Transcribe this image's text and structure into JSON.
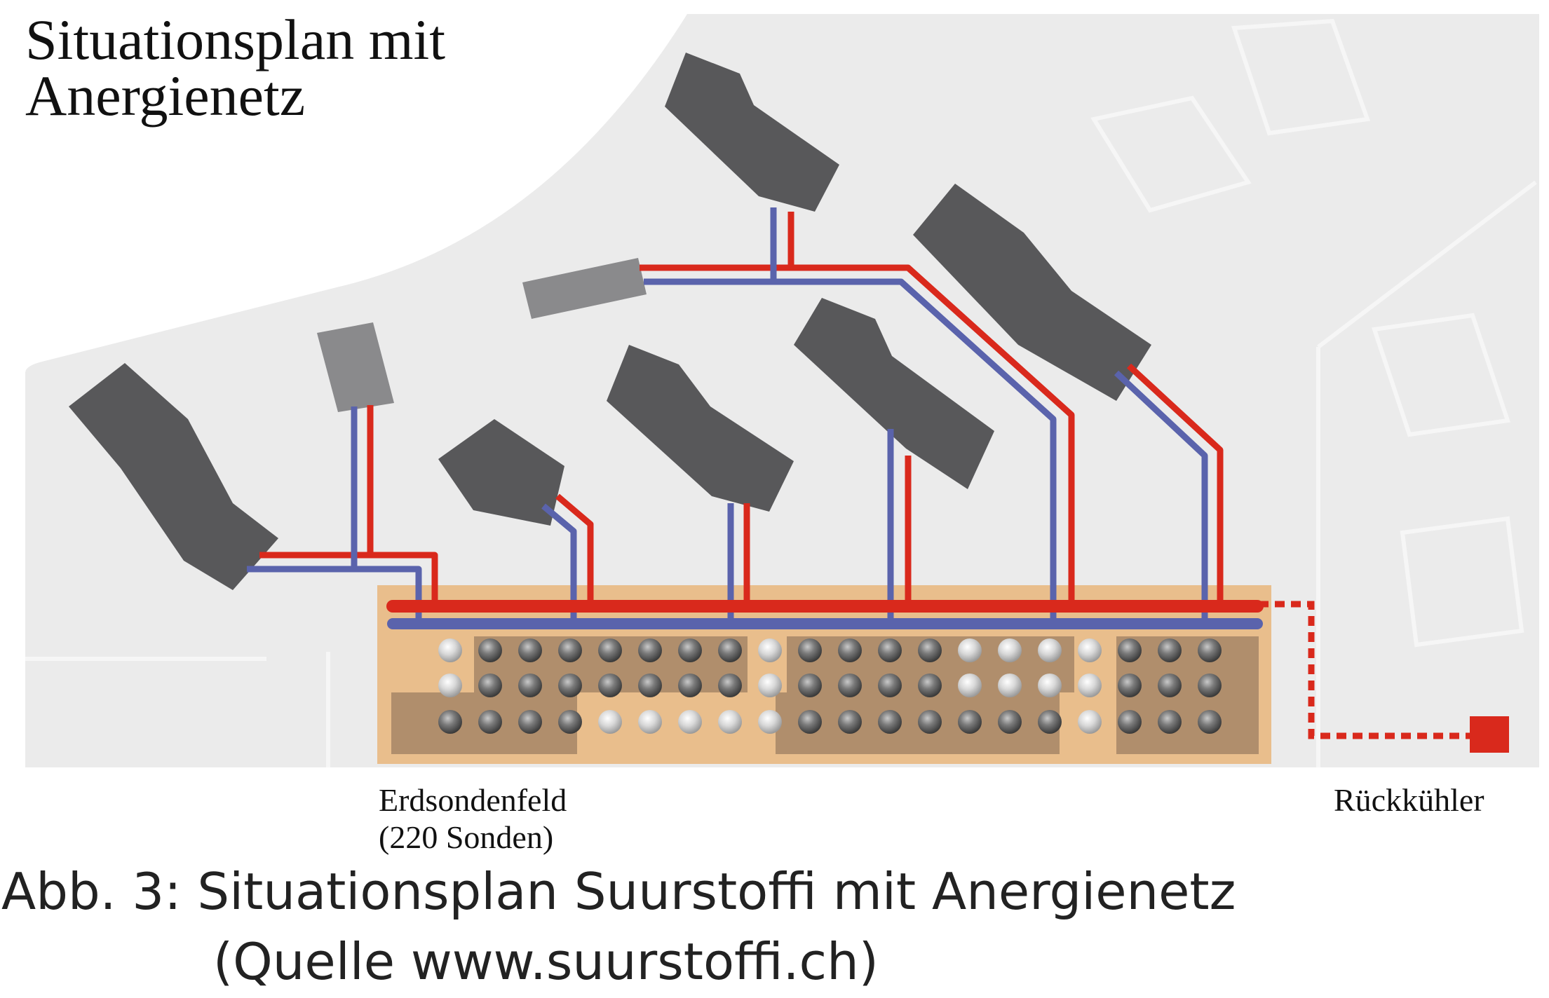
{
  "diagram": {
    "title_line1": "Situationsplan mit",
    "title_line2": "Anergienetz",
    "field_label_line1": "Erdsondenfeld",
    "field_label_line2": "(220 Sonden)",
    "cooler_label": "Rückkühler"
  },
  "caption": {
    "line1": "Abb. 3: Situationsplan Suurstoffi mit Anergienetz",
    "line2": "(Quelle www.suurstoffi.ch)"
  },
  "colors": {
    "site_background": "#ebebeb",
    "building_dark": "#58585a",
    "building_light": "#8a8a8c",
    "field_outer": "#e9be8c",
    "field_inner": "#b08e6c",
    "warm_pipe": "#d9291c",
    "cold_pipe": "#5a63ac"
  },
  "icons": {
    "probe": "gray-sphere",
    "cooler": "red-square"
  }
}
